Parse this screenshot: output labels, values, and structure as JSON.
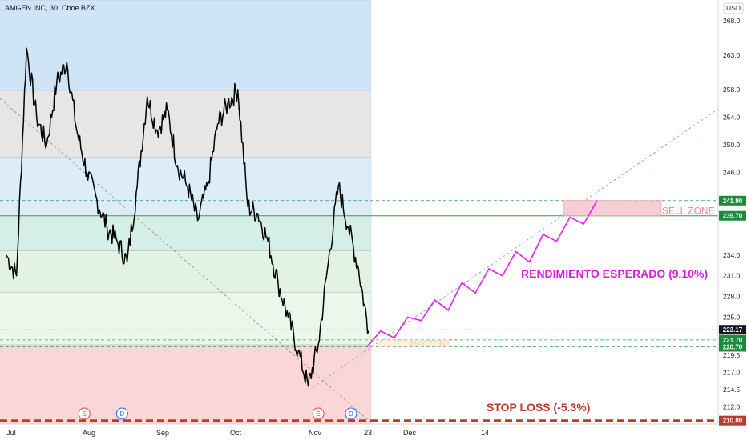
{
  "chart_data": {
    "type": "line",
    "title": "AMGEN INC, 30, Cboe BZX",
    "currency": "USD",
    "x_ticks": [
      "Jul",
      "Aug",
      "Sep",
      "Oct",
      "Nov",
      "23",
      "Dec",
      "14"
    ],
    "y_ticks": [
      268,
      263,
      258,
      254,
      250,
      246,
      234,
      231,
      228,
      225,
      219.5,
      217,
      214.5,
      212
    ],
    "ylim": [
      209.5,
      271
    ],
    "price_series": {
      "x": [
        "Jul 1",
        "Jul 5",
        "Jul 9",
        "Jul 13",
        "Jul 17",
        "Jul 21",
        "Jul 25",
        "Jul 29",
        "Aug 2",
        "Aug 6",
        "Aug 10",
        "Aug 14",
        "Aug 18",
        "Aug 22",
        "Aug 26",
        "Aug 30",
        "Sep 3",
        "Sep 7",
        "Sep 11",
        "Sep 15",
        "Sep 19",
        "Sep 23",
        "Sep 27",
        "Oct 1",
        "Oct 5",
        "Oct 9",
        "Oct 13",
        "Oct 17",
        "Oct 21",
        "Oct 25",
        "Oct 29",
        "Nov 2",
        "Nov 6",
        "Nov 10",
        "Nov 14",
        "Nov 18",
        "Nov 22"
      ],
      "values": [
        234,
        231,
        264,
        254,
        250,
        259,
        262,
        252,
        246,
        242,
        238,
        236,
        233,
        244,
        257,
        252,
        255,
        247,
        244,
        239,
        244,
        253,
        256,
        258,
        241,
        240,
        236,
        230,
        225,
        220,
        215,
        221,
        233,
        244,
        238,
        232,
        223
      ]
    },
    "projection": {
      "x": [
        "Nov 23",
        "Nov 25",
        "Nov 27",
        "Nov 29",
        "Dec 1",
        "Dec 3",
        "Dec 5",
        "Dec 7",
        "Dec 9",
        "Dec 11",
        "Dec 13",
        "Dec 15",
        "Dec 17",
        "Dec 19",
        "Dec 21",
        "Dec 23",
        "Dec 25",
        "Dec 27",
        "Dec 29"
      ],
      "values": [
        220.7,
        223,
        222,
        225,
        224.5,
        227.5,
        226,
        230,
        228.5,
        232,
        231,
        234.5,
        233,
        237,
        236,
        239.5,
        238.5,
        241.9,
        241.9
      ]
    },
    "levels": {
      "sell_zone_top": 241.9,
      "sell_zone_bottom": 239.7,
      "current_price": 223.17,
      "buy_zone_top": 221.7,
      "buy_zone_bottom": 220.7,
      "stop_loss": 210.0
    },
    "price_badges": [
      "241.90",
      "239.70",
      "223.17",
      "221.70",
      "220.70",
      "210.00"
    ],
    "fib_bands": [
      {
        "top": 271,
        "bottom": 257.9,
        "color": "#cfe5f7"
      },
      {
        "top": 257.9,
        "bottom": 248.2,
        "color": "#e6e6e6"
      },
      {
        "top": 248.2,
        "bottom": 239.7,
        "color": "#dcecf9"
      },
      {
        "top": 239.7,
        "bottom": 234.6,
        "color": "#d6efe6"
      },
      {
        "top": 234.6,
        "bottom": 228.6,
        "color": "#e3f3e3"
      },
      {
        "top": 228.6,
        "bottom": 221.0,
        "color": "#ecf7ec"
      },
      {
        "top": 221.0,
        "bottom": 209.5,
        "color": "#fbd6d6"
      }
    ],
    "annotations": {
      "sell_zone": "SELL ZONE",
      "buy_zone": "BUY ZONE",
      "rendimiento": "RENDIMIENTO ESPERADO (9.10%)",
      "stop_loss": "STOP LOSS (-5.3%)"
    },
    "event_markers": [
      {
        "label": "E",
        "date": "Aug 1",
        "color": "#f23645"
      },
      {
        "label": "D",
        "date": "Aug 16",
        "color": "#2962ff"
      },
      {
        "label": "E",
        "date": "Nov 2",
        "color": "#f23645"
      },
      {
        "label": "D",
        "date": "Nov 15",
        "color": "#2962ff"
      }
    ],
    "colors": {
      "price": "#000000",
      "projection": "#e91ee9",
      "badge": "#1b8a3a",
      "badge_current": "#131722",
      "badge_stop": "#c0392b",
      "stop_line": "#c0392b",
      "sell_zone_fill": "#f7c6cf",
      "rendimiento": "#d61fd6",
      "stop_text": "#c0392b",
      "trend_dashed": "#6fa8dc",
      "guide_green": "#2e9e4f"
    }
  }
}
